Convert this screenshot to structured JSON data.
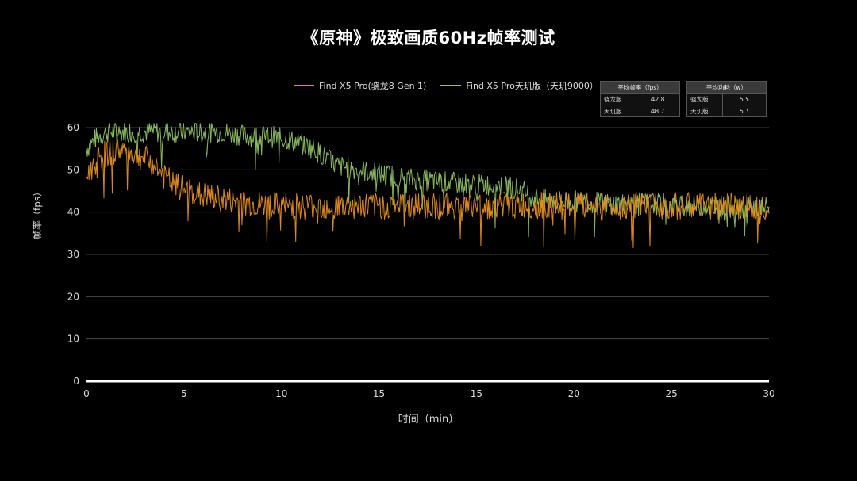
{
  "chart_data": {
    "type": "line",
    "title": "《原神》极致画质60Hz帧率测试",
    "xlabel": "时间（min）",
    "ylabel": "帧率（fps）",
    "xlim": [
      0,
      30
    ],
    "ylim": [
      0,
      60
    ],
    "x_ticks": [
      "0",
      "5",
      "10",
      "15",
      "15",
      "20",
      "25",
      "30"
    ],
    "y_ticks": [
      "0",
      "10",
      "20",
      "30",
      "40",
      "50",
      "60"
    ],
    "grid": "horizontal",
    "legend_position": "top",
    "series": [
      {
        "name": "Find X5 Pro(骁龙8 Gen 1)",
        "color": "#e8901e",
        "x": [
          0,
          0.5,
          1,
          1.5,
          2,
          2.5,
          3,
          3.5,
          4,
          4.5,
          5,
          6,
          7,
          8,
          9,
          10,
          11,
          12,
          13,
          14,
          15,
          16,
          17,
          18,
          19,
          20,
          21,
          22,
          23,
          24,
          25,
          26,
          27,
          28,
          29,
          30
        ],
        "values": [
          48,
          53,
          54,
          55,
          54,
          53,
          51,
          48,
          46,
          45,
          44,
          43,
          42,
          41.5,
          41.5,
          41.5,
          41.5,
          41.5,
          41.5,
          41.5,
          41.5,
          41.5,
          41.5,
          41.5,
          41.5,
          41.5,
          41.5,
          41.5,
          41.5,
          41.5,
          41.5,
          41.5,
          41.5,
          41.5,
          41.5,
          41.5
        ]
      },
      {
        "name": "Find X5 Pro天玑版（天玑9000）",
        "color": "#8fc262",
        "x": [
          0,
          0.5,
          1,
          2,
          3,
          4,
          5,
          6,
          7,
          8,
          9,
          10,
          10.5,
          11,
          12,
          13,
          14,
          15,
          16,
          17,
          18,
          19,
          19.5,
          20,
          21,
          22,
          23,
          24,
          25,
          26,
          27,
          28,
          29,
          30
        ],
        "values": [
          55,
          58,
          59,
          59,
          59,
          59,
          59,
          59,
          58,
          58,
          57,
          55,
          53,
          51,
          50,
          49,
          48,
          47.5,
          47,
          46.5,
          46.5,
          45.5,
          44,
          43,
          42.5,
          42.5,
          42,
          42,
          42,
          41.5,
          41.5,
          41.5,
          41,
          41
        ]
      }
    ],
    "summary_tables": [
      {
        "header": "平均帧率（fps）",
        "rows": [
          {
            "label": "骁龙版",
            "value": "42.8"
          },
          {
            "label": "天玑版",
            "value": "48.7"
          }
        ]
      },
      {
        "header": "平均功耗（w）",
        "rows": [
          {
            "label": "骁龙版",
            "value": "5.5"
          },
          {
            "label": "天玑版",
            "value": "5.7"
          }
        ]
      }
    ]
  }
}
